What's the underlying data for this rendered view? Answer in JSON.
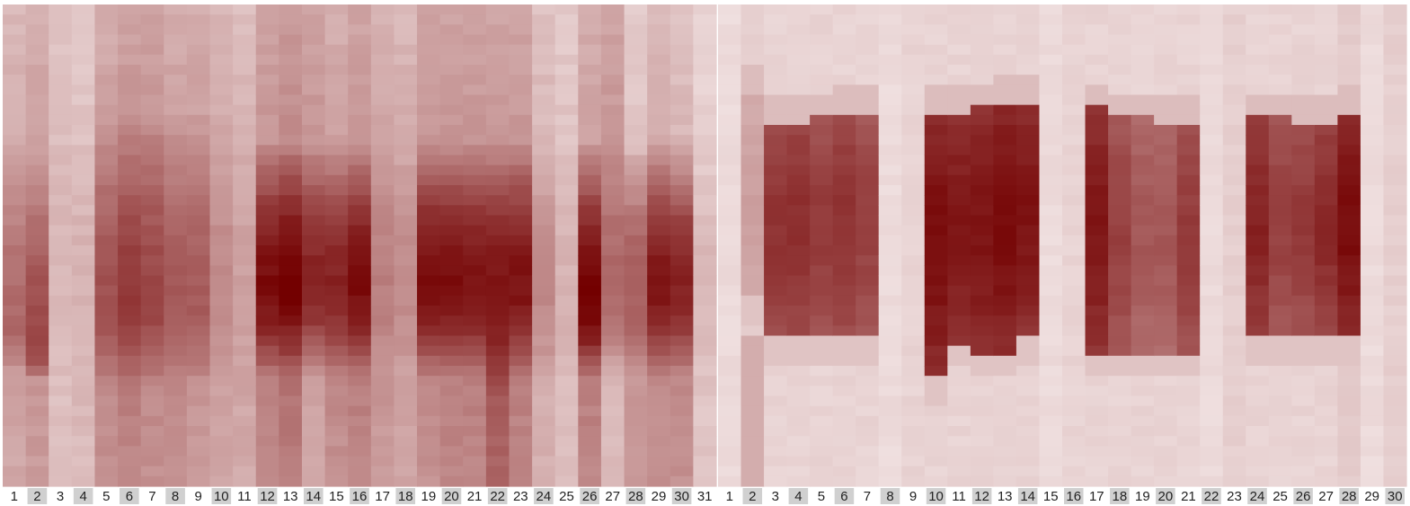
{
  "chart_data": {
    "type": "heatmap",
    "colors": {
      "low": "#f3e6e6",
      "high": "#730000",
      "label_shade": "#d0d0d0",
      "label_text": "#222222"
    },
    "panels": [
      {
        "name": "",
        "day_labels": [
          "1",
          "2",
          "3",
          "4",
          "5",
          "6",
          "7",
          "8",
          "9",
          "10",
          "11",
          "12",
          "13",
          "14",
          "15",
          "16",
          "17",
          "18",
          "19",
          "20",
          "21",
          "22",
          "23",
          "24",
          "25",
          "26",
          "27",
          "28",
          "29",
          "30",
          "31"
        ],
        "columns": [
          {
            "top": 0.25,
            "mid": 0.55,
            "bottom": 0.3,
            "peak": 0.68,
            "lo": 0.28,
            "hi": 0.76
          },
          {
            "top": 0.3,
            "mid": 0.7,
            "bottom": 0.35,
            "peak": 0.72,
            "lo": 0.3,
            "hi": 0.78
          },
          {
            "top": 0.18,
            "mid": 0.2,
            "bottom": 0.18,
            "peak": 0.55,
            "lo": 0.25,
            "hi": 0.75
          },
          {
            "top": 0.15,
            "mid": 0.22,
            "bottom": 0.2,
            "peak": 0.55,
            "lo": 0.25,
            "hi": 0.75
          },
          {
            "top": 0.3,
            "mid": 0.65,
            "bottom": 0.4,
            "peak": 0.62,
            "lo": 0.22,
            "hi": 0.8
          },
          {
            "top": 0.35,
            "mid": 0.75,
            "bottom": 0.45,
            "peak": 0.62,
            "lo": 0.22,
            "hi": 0.8
          },
          {
            "top": 0.35,
            "mid": 0.7,
            "bottom": 0.4,
            "peak": 0.62,
            "lo": 0.22,
            "hi": 0.8
          },
          {
            "top": 0.3,
            "mid": 0.62,
            "bottom": 0.4,
            "peak": 0.62,
            "lo": 0.22,
            "hi": 0.8
          },
          {
            "top": 0.3,
            "mid": 0.6,
            "bottom": 0.35,
            "peak": 0.62,
            "lo": 0.22,
            "hi": 0.8
          },
          {
            "top": 0.25,
            "mid": 0.4,
            "bottom": 0.3,
            "peak": 0.62,
            "lo": 0.22,
            "hi": 0.8
          },
          {
            "top": 0.22,
            "mid": 0.3,
            "bottom": 0.28,
            "peak": 0.62,
            "lo": 0.22,
            "hi": 0.8
          },
          {
            "top": 0.35,
            "mid": 0.95,
            "bottom": 0.45,
            "peak": 0.58,
            "lo": 0.28,
            "hi": 0.78
          },
          {
            "top": 0.4,
            "mid": 1.0,
            "bottom": 0.5,
            "peak": 0.58,
            "lo": 0.28,
            "hi": 0.78
          },
          {
            "top": 0.35,
            "mid": 0.85,
            "bottom": 0.3,
            "peak": 0.58,
            "lo": 0.28,
            "hi": 0.78
          },
          {
            "top": 0.3,
            "mid": 0.85,
            "bottom": 0.4,
            "peak": 0.58,
            "lo": 0.28,
            "hi": 0.78
          },
          {
            "top": 0.35,
            "mid": 0.95,
            "bottom": 0.45,
            "peak": 0.58,
            "lo": 0.28,
            "hi": 0.78
          },
          {
            "top": 0.28,
            "mid": 0.45,
            "bottom": 0.35,
            "peak": 0.58,
            "lo": 0.28,
            "hi": 0.78
          },
          {
            "top": 0.25,
            "mid": 0.4,
            "bottom": 0.3,
            "peak": 0.58,
            "lo": 0.28,
            "hi": 0.78
          },
          {
            "top": 0.35,
            "mid": 0.95,
            "bottom": 0.4,
            "peak": 0.58,
            "lo": 0.28,
            "hi": 0.78
          },
          {
            "top": 0.35,
            "mid": 0.95,
            "bottom": 0.45,
            "peak": 0.58,
            "lo": 0.28,
            "hi": 0.78
          },
          {
            "top": 0.35,
            "mid": 0.92,
            "bottom": 0.45,
            "peak": 0.58,
            "lo": 0.28,
            "hi": 0.78
          },
          {
            "top": 0.35,
            "mid": 0.92,
            "bottom": 0.6,
            "peak": 0.6,
            "lo": 0.28,
            "hi": 0.82
          },
          {
            "top": 0.35,
            "mid": 0.92,
            "bottom": 0.45,
            "peak": 0.58,
            "lo": 0.28,
            "hi": 0.78
          },
          {
            "top": 0.2,
            "mid": 0.4,
            "bottom": 0.25,
            "peak": 0.6,
            "lo": 0.28,
            "hi": 0.8
          },
          {
            "top": 0.15,
            "mid": 0.22,
            "bottom": 0.18,
            "peak": 0.6,
            "lo": 0.28,
            "hi": 0.8
          },
          {
            "top": 0.3,
            "mid": 1.0,
            "bottom": 0.45,
            "peak": 0.62,
            "lo": 0.28,
            "hi": 0.78
          },
          {
            "top": 0.35,
            "mid": 0.55,
            "bottom": 0.2,
            "peak": 0.58,
            "lo": 0.28,
            "hi": 0.78
          },
          {
            "top": 0.15,
            "mid": 0.6,
            "bottom": 0.35,
            "peak": 0.58,
            "lo": 0.28,
            "hi": 0.78
          },
          {
            "top": 0.25,
            "mid": 0.9,
            "bottom": 0.4,
            "peak": 0.58,
            "lo": 0.28,
            "hi": 0.78
          },
          {
            "top": 0.2,
            "mid": 0.85,
            "bottom": 0.4,
            "peak": 0.58,
            "lo": 0.28,
            "hi": 0.78
          },
          {
            "top": 0.1,
            "mid": 0.2,
            "bottom": 0.15,
            "peak": 0.58,
            "lo": 0.28,
            "hi": 0.78
          }
        ]
      },
      {
        "name": "",
        "day_labels": [
          "1",
          "2",
          "3",
          "4",
          "5",
          "6",
          "7",
          "8",
          "9",
          "10",
          "11",
          "12",
          "13",
          "14",
          "15",
          "16",
          "17",
          "18",
          "19",
          "20",
          "21",
          "22",
          "23",
          "24",
          "25",
          "26",
          "27",
          "28",
          "29",
          "30"
        ],
        "columns": [
          {
            "bg": 0.05,
            "band": null
          },
          {
            "bg": 0.1,
            "band": [
              0.18,
              0.6,
              0.3
            ],
            "tail": [
              0.69,
              0.99,
              0.25
            ]
          },
          {
            "bg": 0.08,
            "band": [
              0.24,
              0.68,
              0.78
            ]
          },
          {
            "bg": 0.08,
            "band": [
              0.24,
              0.68,
              0.8
            ]
          },
          {
            "bg": 0.08,
            "band": [
              0.23,
              0.68,
              0.74
            ]
          },
          {
            "bg": 0.08,
            "band": [
              0.22,
              0.68,
              0.78
            ]
          },
          {
            "bg": 0.08,
            "band": [
              0.22,
              0.68,
              0.72
            ]
          },
          {
            "bg": 0.05,
            "band": null
          },
          {
            "bg": 0.08,
            "band": null
          },
          {
            "bg": 0.08,
            "band": [
              0.22,
              0.77,
              0.94
            ]
          },
          {
            "bg": 0.08,
            "band": [
              0.22,
              0.7,
              0.9
            ]
          },
          {
            "bg": 0.08,
            "band": [
              0.21,
              0.72,
              0.92
            ]
          },
          {
            "bg": 0.08,
            "band": [
              0.2,
              0.72,
              0.95
            ]
          },
          {
            "bg": 0.08,
            "band": [
              0.2,
              0.68,
              0.92
            ]
          },
          {
            "bg": 0.05,
            "band": null
          },
          {
            "bg": 0.08,
            "band": null
          },
          {
            "bg": 0.08,
            "band": [
              0.21,
              0.72,
              0.9
            ]
          },
          {
            "bg": 0.08,
            "band": [
              0.23,
              0.72,
              0.72
            ]
          },
          {
            "bg": 0.08,
            "band": [
              0.23,
              0.72,
              0.62
            ]
          },
          {
            "bg": 0.08,
            "band": [
              0.24,
              0.72,
              0.62
            ]
          },
          {
            "bg": 0.08,
            "band": [
              0.24,
              0.72,
              0.74
            ]
          },
          {
            "bg": 0.05,
            "band": null
          },
          {
            "bg": 0.1,
            "band": null
          },
          {
            "bg": 0.08,
            "band": [
              0.23,
              0.68,
              0.85
            ]
          },
          {
            "bg": 0.08,
            "band": [
              0.23,
              0.68,
              0.72
            ]
          },
          {
            "bg": 0.08,
            "band": [
              0.24,
              0.68,
              0.75
            ]
          },
          {
            "bg": 0.08,
            "band": [
              0.24,
              0.68,
              0.82
            ]
          },
          {
            "bg": 0.12,
            "band": [
              0.22,
              0.68,
              0.95
            ]
          },
          {
            "bg": 0.05,
            "band": null
          },
          {
            "bg": 0.1,
            "band": null
          }
        ]
      }
    ]
  }
}
